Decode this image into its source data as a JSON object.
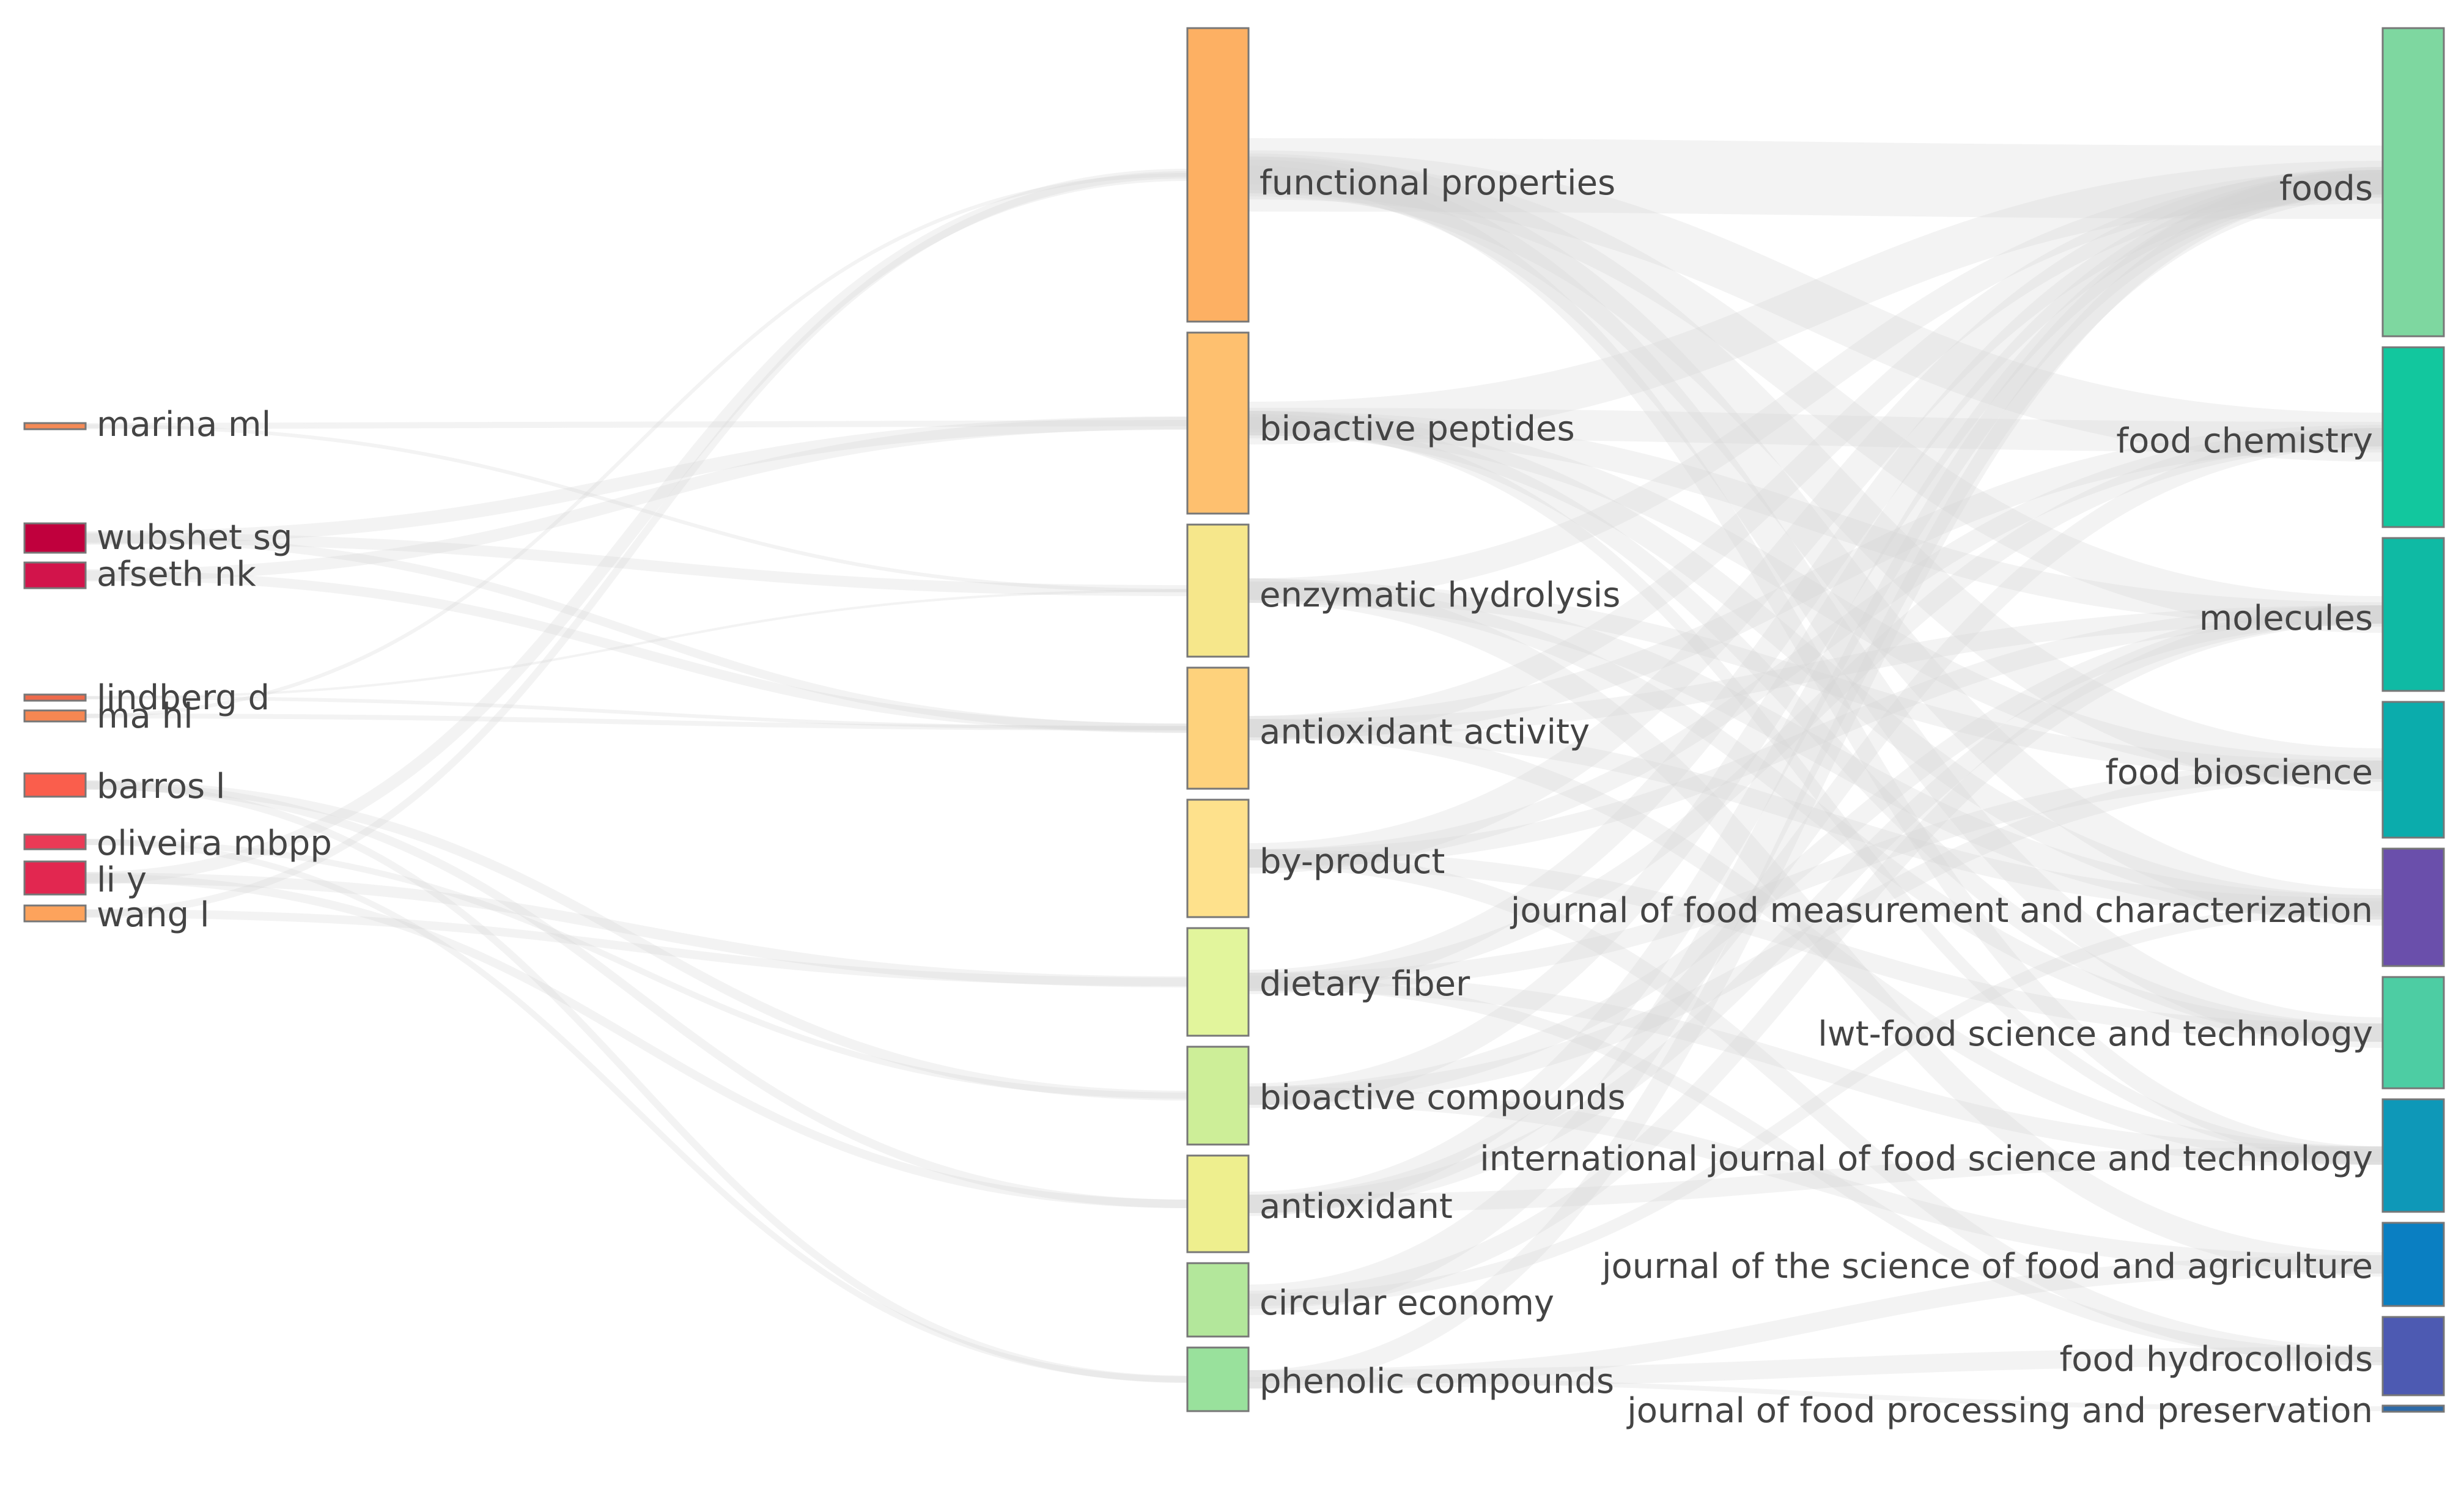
{
  "diagram": {
    "type": "sankey",
    "columns": [
      {
        "name": "authors",
        "nodes": [
          {
            "label": "marina ml",
            "color": "#f58a56"
          },
          {
            "label": "wubshet sg",
            "color": "#c0003d"
          },
          {
            "label": "afseth nk",
            "color": "#d2144b"
          },
          {
            "label": "lindberg d",
            "color": "#ee6a4b"
          },
          {
            "label": "ma hl",
            "color": "#f58752"
          },
          {
            "label": "barros l",
            "color": "#fa5e4c"
          },
          {
            "label": "oliveira mbpp",
            "color": "#ea3a56"
          },
          {
            "label": "li y",
            "color": "#e22750"
          },
          {
            "label": "wang l",
            "color": "#fda35c"
          }
        ]
      },
      {
        "name": "keywords",
        "nodes": [
          {
            "label": "functional properties",
            "color": "#fdb063"
          },
          {
            "label": "bioactive peptides",
            "color": "#fec06f"
          },
          {
            "label": "enzymatic hydrolysis",
            "color": "#f6e78b"
          },
          {
            "label": "antioxidant activity",
            "color": "#fed27c"
          },
          {
            "label": "by-product",
            "color": "#fee18c"
          },
          {
            "label": "dietary fiber",
            "color": "#e2f59c"
          },
          {
            "label": "bioactive compounds",
            "color": "#cdee98"
          },
          {
            "label": "antioxidant",
            "color": "#eeef8e"
          },
          {
            "label": "circular economy",
            "color": "#b3e79b"
          },
          {
            "label": "phenolic compounds",
            "color": "#99e19c"
          }
        ]
      },
      {
        "name": "journals",
        "nodes": [
          {
            "label": "foods",
            "color": "#7ed7a0"
          },
          {
            "label": "food chemistry",
            "color": "#12c79e"
          },
          {
            "label": "molecules",
            "color": "#0fbaa4"
          },
          {
            "label": "food bioscience",
            "color": "#0bacac"
          },
          {
            "label": "journal of food measurement and characterization",
            "color": "#6a4fab"
          },
          {
            "label": "lwt-food science and technology",
            "color": "#4dcda3"
          },
          {
            "label": "international journal of food science and technology",
            "color": "#0e98b8"
          },
          {
            "label": "journal of the science of food and agriculture",
            "color": "#0a7fc2"
          },
          {
            "label": "food hydrocolloids",
            "color": "#4d5ab2"
          },
          {
            "label": "journal of food processing and preservation",
            "color": "#2d6aa8"
          }
        ]
      }
    ]
  }
}
